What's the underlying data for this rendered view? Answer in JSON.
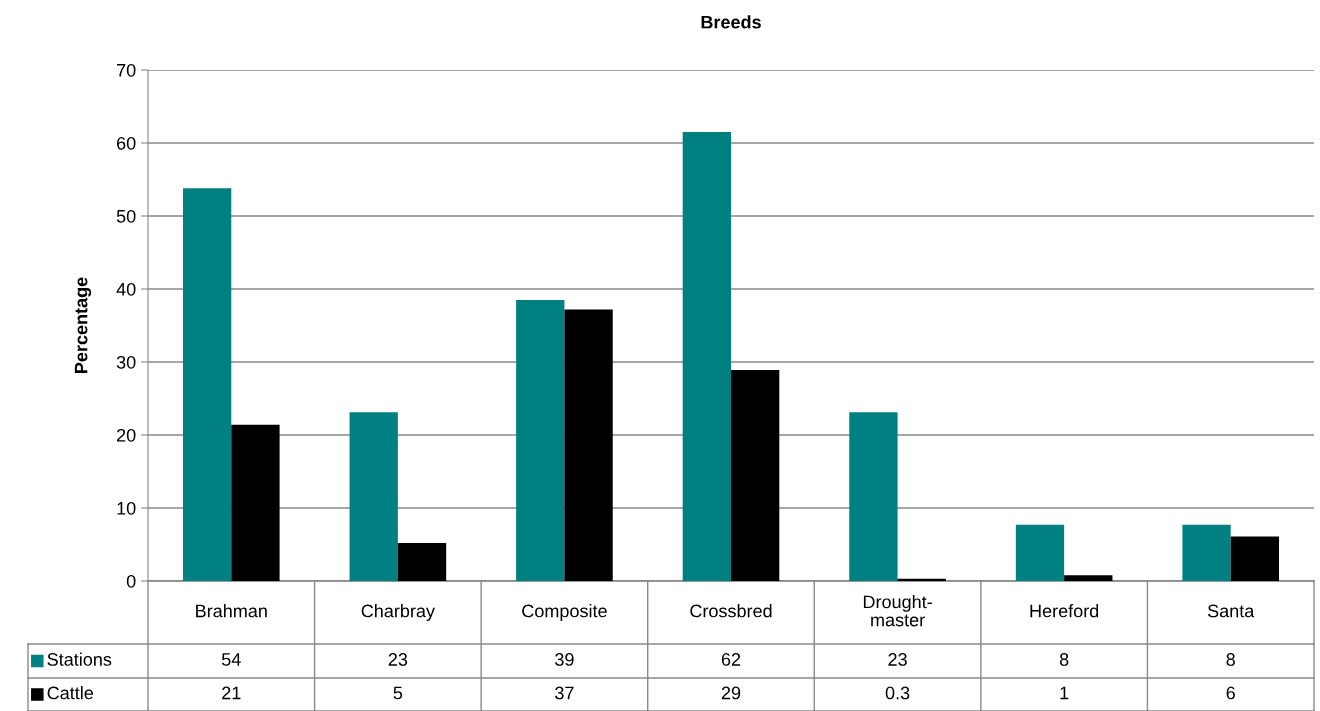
{
  "chart_data": {
    "type": "bar",
    "title": "Breeds",
    "ylabel": "Percentage",
    "categories": [
      "Brahman",
      "Charbray",
      "Composite",
      "Crossbred",
      "Drought-\nmaster",
      "Hereford",
      "Santa"
    ],
    "series": [
      {
        "name": "Stations",
        "color": "#008080",
        "values": [
          53.8,
          23.1,
          38.5,
          61.5,
          23.1,
          7.7,
          7.7
        ],
        "value_labels": [
          "54",
          "23",
          "39",
          "62",
          "23",
          "8",
          "8"
        ]
      },
      {
        "name": "Cattle",
        "color": "#000000",
        "values": [
          21.4,
          5.2,
          37.2,
          28.9,
          0.3,
          0.8,
          6.1
        ],
        "value_labels": [
          "21",
          "5",
          "37",
          "29",
          "0.3",
          "1",
          "6"
        ]
      }
    ],
    "ylim": [
      0,
      70
    ],
    "yticks": [
      0,
      10,
      20,
      30,
      40,
      50,
      60,
      70
    ],
    "grid": "y",
    "legend": "bottom left"
  }
}
